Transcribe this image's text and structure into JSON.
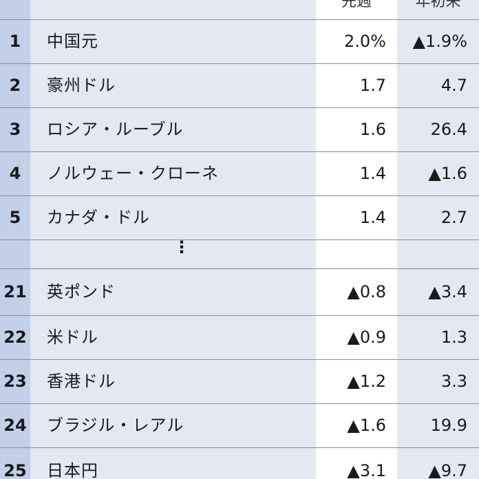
{
  "headers": {
    "week": "先週",
    "ytd": "年初来"
  },
  "rows": [
    {
      "rank": "1",
      "name": "中国元",
      "week": "2.0%",
      "ytd": "▲1.9%"
    },
    {
      "rank": "2",
      "name": "豪州ドル",
      "week": "1.7",
      "ytd": "4.7"
    },
    {
      "rank": "3",
      "name": "ロシア・ルーブル",
      "week": "1.6",
      "ytd": "26.4"
    },
    {
      "rank": "4",
      "name": "ノルウェー・クローネ",
      "week": "1.4",
      "ytd": "▲1.6"
    },
    {
      "rank": "5",
      "name": "カナダ・ドル",
      "week": "1.4",
      "ytd": "2.7"
    },
    {
      "rank": "21",
      "name": "英ポンド",
      "week": "▲0.8",
      "ytd": "▲3.4"
    },
    {
      "rank": "22",
      "name": "米ドル",
      "week": "▲0.9",
      "ytd": "1.3"
    },
    {
      "rank": "23",
      "name": "香港ドル",
      "week": "▲1.2",
      "ytd": "3.3"
    },
    {
      "rank": "24",
      "name": "ブラジル・レアル",
      "week": "▲1.6",
      "ytd": "19.9"
    },
    {
      "rank": "25",
      "name": "日本円",
      "week": "▲3.1",
      "ytd": "▲9.7"
    }
  ],
  "ellipsis": "⋮"
}
